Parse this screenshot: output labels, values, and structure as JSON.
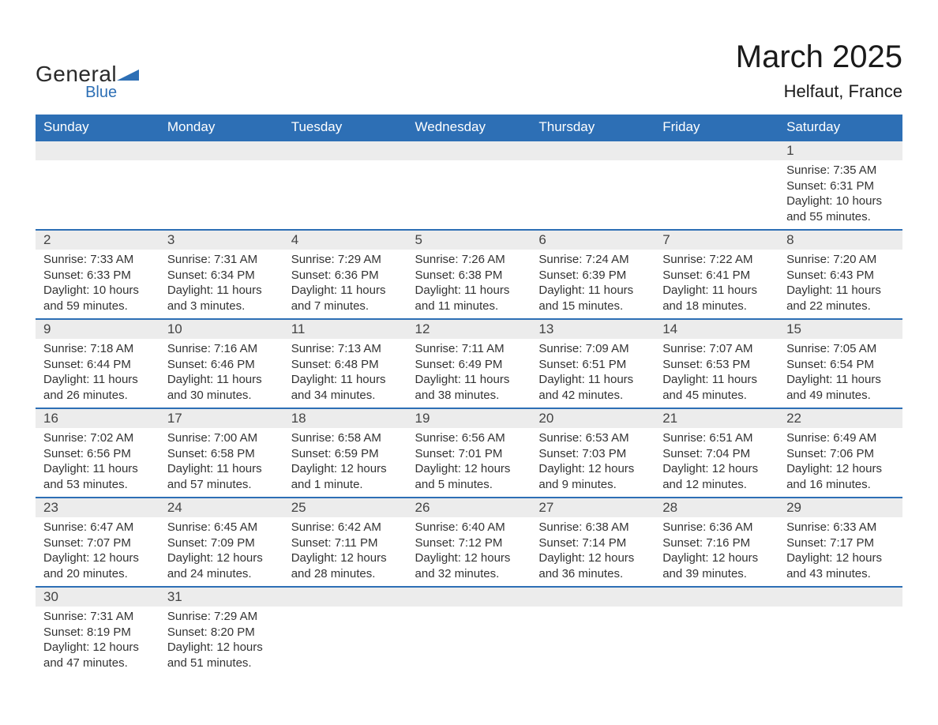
{
  "logo": {
    "word1": "General",
    "word2": "Blue"
  },
  "title": "March 2025",
  "location": "Helfaut, France",
  "colors": {
    "header_bg": "#2d6fb5",
    "bar_bg": "#ececec",
    "border": "#2d6fb5",
    "text": "#333333",
    "logo_dark": "#2a2a2a",
    "logo_blue": "#2d6fb5"
  },
  "day_headers": [
    "Sunday",
    "Monday",
    "Tuesday",
    "Wednesday",
    "Thursday",
    "Friday",
    "Saturday"
  ],
  "weeks": [
    [
      {
        "n": "",
        "sr": "",
        "ss": "",
        "dl1": "",
        "dl2": ""
      },
      {
        "n": "",
        "sr": "",
        "ss": "",
        "dl1": "",
        "dl2": ""
      },
      {
        "n": "",
        "sr": "",
        "ss": "",
        "dl1": "",
        "dl2": ""
      },
      {
        "n": "",
        "sr": "",
        "ss": "",
        "dl1": "",
        "dl2": ""
      },
      {
        "n": "",
        "sr": "",
        "ss": "",
        "dl1": "",
        "dl2": ""
      },
      {
        "n": "",
        "sr": "",
        "ss": "",
        "dl1": "",
        "dl2": ""
      },
      {
        "n": "1",
        "sr": "Sunrise: 7:35 AM",
        "ss": "Sunset: 6:31 PM",
        "dl1": "Daylight: 10 hours",
        "dl2": "and 55 minutes."
      }
    ],
    [
      {
        "n": "2",
        "sr": "Sunrise: 7:33 AM",
        "ss": "Sunset: 6:33 PM",
        "dl1": "Daylight: 10 hours",
        "dl2": "and 59 minutes."
      },
      {
        "n": "3",
        "sr": "Sunrise: 7:31 AM",
        "ss": "Sunset: 6:34 PM",
        "dl1": "Daylight: 11 hours",
        "dl2": "and 3 minutes."
      },
      {
        "n": "4",
        "sr": "Sunrise: 7:29 AM",
        "ss": "Sunset: 6:36 PM",
        "dl1": "Daylight: 11 hours",
        "dl2": "and 7 minutes."
      },
      {
        "n": "5",
        "sr": "Sunrise: 7:26 AM",
        "ss": "Sunset: 6:38 PM",
        "dl1": "Daylight: 11 hours",
        "dl2": "and 11 minutes."
      },
      {
        "n": "6",
        "sr": "Sunrise: 7:24 AM",
        "ss": "Sunset: 6:39 PM",
        "dl1": "Daylight: 11 hours",
        "dl2": "and 15 minutes."
      },
      {
        "n": "7",
        "sr": "Sunrise: 7:22 AM",
        "ss": "Sunset: 6:41 PM",
        "dl1": "Daylight: 11 hours",
        "dl2": "and 18 minutes."
      },
      {
        "n": "8",
        "sr": "Sunrise: 7:20 AM",
        "ss": "Sunset: 6:43 PM",
        "dl1": "Daylight: 11 hours",
        "dl2": "and 22 minutes."
      }
    ],
    [
      {
        "n": "9",
        "sr": "Sunrise: 7:18 AM",
        "ss": "Sunset: 6:44 PM",
        "dl1": "Daylight: 11 hours",
        "dl2": "and 26 minutes."
      },
      {
        "n": "10",
        "sr": "Sunrise: 7:16 AM",
        "ss": "Sunset: 6:46 PM",
        "dl1": "Daylight: 11 hours",
        "dl2": "and 30 minutes."
      },
      {
        "n": "11",
        "sr": "Sunrise: 7:13 AM",
        "ss": "Sunset: 6:48 PM",
        "dl1": "Daylight: 11 hours",
        "dl2": "and 34 minutes."
      },
      {
        "n": "12",
        "sr": "Sunrise: 7:11 AM",
        "ss": "Sunset: 6:49 PM",
        "dl1": "Daylight: 11 hours",
        "dl2": "and 38 minutes."
      },
      {
        "n": "13",
        "sr": "Sunrise: 7:09 AM",
        "ss": "Sunset: 6:51 PM",
        "dl1": "Daylight: 11 hours",
        "dl2": "and 42 minutes."
      },
      {
        "n": "14",
        "sr": "Sunrise: 7:07 AM",
        "ss": "Sunset: 6:53 PM",
        "dl1": "Daylight: 11 hours",
        "dl2": "and 45 minutes."
      },
      {
        "n": "15",
        "sr": "Sunrise: 7:05 AM",
        "ss": "Sunset: 6:54 PM",
        "dl1": "Daylight: 11 hours",
        "dl2": "and 49 minutes."
      }
    ],
    [
      {
        "n": "16",
        "sr": "Sunrise: 7:02 AM",
        "ss": "Sunset: 6:56 PM",
        "dl1": "Daylight: 11 hours",
        "dl2": "and 53 minutes."
      },
      {
        "n": "17",
        "sr": "Sunrise: 7:00 AM",
        "ss": "Sunset: 6:58 PM",
        "dl1": "Daylight: 11 hours",
        "dl2": "and 57 minutes."
      },
      {
        "n": "18",
        "sr": "Sunrise: 6:58 AM",
        "ss": "Sunset: 6:59 PM",
        "dl1": "Daylight: 12 hours",
        "dl2": "and 1 minute."
      },
      {
        "n": "19",
        "sr": "Sunrise: 6:56 AM",
        "ss": "Sunset: 7:01 PM",
        "dl1": "Daylight: 12 hours",
        "dl2": "and 5 minutes."
      },
      {
        "n": "20",
        "sr": "Sunrise: 6:53 AM",
        "ss": "Sunset: 7:03 PM",
        "dl1": "Daylight: 12 hours",
        "dl2": "and 9 minutes."
      },
      {
        "n": "21",
        "sr": "Sunrise: 6:51 AM",
        "ss": "Sunset: 7:04 PM",
        "dl1": "Daylight: 12 hours",
        "dl2": "and 12 minutes."
      },
      {
        "n": "22",
        "sr": "Sunrise: 6:49 AM",
        "ss": "Sunset: 7:06 PM",
        "dl1": "Daylight: 12 hours",
        "dl2": "and 16 minutes."
      }
    ],
    [
      {
        "n": "23",
        "sr": "Sunrise: 6:47 AM",
        "ss": "Sunset: 7:07 PM",
        "dl1": "Daylight: 12 hours",
        "dl2": "and 20 minutes."
      },
      {
        "n": "24",
        "sr": "Sunrise: 6:45 AM",
        "ss": "Sunset: 7:09 PM",
        "dl1": "Daylight: 12 hours",
        "dl2": "and 24 minutes."
      },
      {
        "n": "25",
        "sr": "Sunrise: 6:42 AM",
        "ss": "Sunset: 7:11 PM",
        "dl1": "Daylight: 12 hours",
        "dl2": "and 28 minutes."
      },
      {
        "n": "26",
        "sr": "Sunrise: 6:40 AM",
        "ss": "Sunset: 7:12 PM",
        "dl1": "Daylight: 12 hours",
        "dl2": "and 32 minutes."
      },
      {
        "n": "27",
        "sr": "Sunrise: 6:38 AM",
        "ss": "Sunset: 7:14 PM",
        "dl1": "Daylight: 12 hours",
        "dl2": "and 36 minutes."
      },
      {
        "n": "28",
        "sr": "Sunrise: 6:36 AM",
        "ss": "Sunset: 7:16 PM",
        "dl1": "Daylight: 12 hours",
        "dl2": "and 39 minutes."
      },
      {
        "n": "29",
        "sr": "Sunrise: 6:33 AM",
        "ss": "Sunset: 7:17 PM",
        "dl1": "Daylight: 12 hours",
        "dl2": "and 43 minutes."
      }
    ],
    [
      {
        "n": "30",
        "sr": "Sunrise: 7:31 AM",
        "ss": "Sunset: 8:19 PM",
        "dl1": "Daylight: 12 hours",
        "dl2": "and 47 minutes."
      },
      {
        "n": "31",
        "sr": "Sunrise: 7:29 AM",
        "ss": "Sunset: 8:20 PM",
        "dl1": "Daylight: 12 hours",
        "dl2": "and 51 minutes."
      },
      {
        "n": "",
        "sr": "",
        "ss": "",
        "dl1": "",
        "dl2": ""
      },
      {
        "n": "",
        "sr": "",
        "ss": "",
        "dl1": "",
        "dl2": ""
      },
      {
        "n": "",
        "sr": "",
        "ss": "",
        "dl1": "",
        "dl2": ""
      },
      {
        "n": "",
        "sr": "",
        "ss": "",
        "dl1": "",
        "dl2": ""
      },
      {
        "n": "",
        "sr": "",
        "ss": "",
        "dl1": "",
        "dl2": ""
      }
    ]
  ]
}
